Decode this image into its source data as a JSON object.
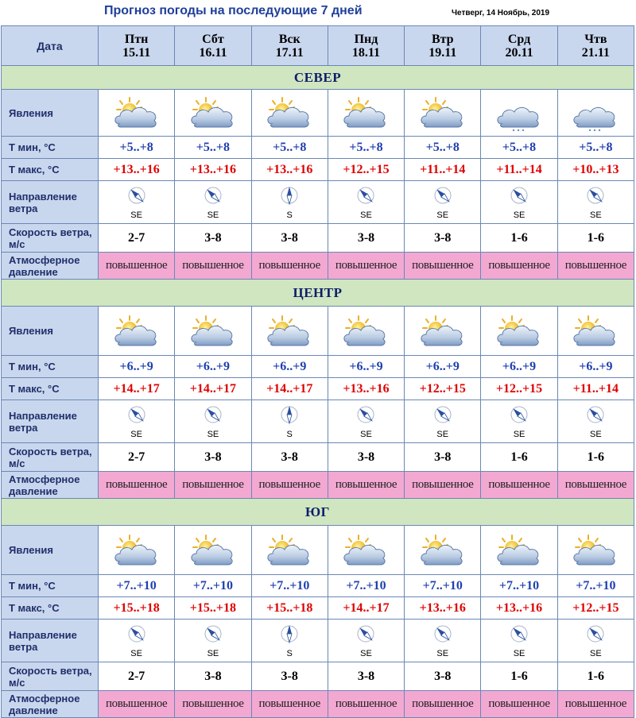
{
  "title": "Прогноз погоды на последующие 7 дней",
  "current_date": "Четверг, 14 Ноябрь, 2019",
  "header_label": "Дата",
  "days": [
    {
      "name": "Птн",
      "date": "15.11"
    },
    {
      "name": "Сбт",
      "date": "16.11"
    },
    {
      "name": "Вск",
      "date": "17.11"
    },
    {
      "name": "Пнд",
      "date": "18.11"
    },
    {
      "name": "Втр",
      "date": "19.11"
    },
    {
      "name": "Срд",
      "date": "20.11"
    },
    {
      "name": "Чтв",
      "date": "21.11"
    }
  ],
  "row_labels": {
    "phenomena": "Явления",
    "tmin": "Т мин, °С",
    "tmax": "Т макс, °С",
    "wind_dir": "Направление ветра",
    "wind_speed": "Скорость ветра, м/с",
    "pressure": "Атмосферное давление"
  },
  "colors": {
    "label_bg": "#c9d7ee",
    "region_bg": "#cfe6c0",
    "pressure_bg": "#f3a8d2",
    "tmin_text": "#1f3fb0",
    "tmax_text": "#e00000"
  },
  "regions": [
    {
      "name": "СЕВЕР",
      "icons": [
        "partly-cloudy-icon",
        "partly-cloudy-icon",
        "partly-cloudy-icon",
        "partly-cloudy-icon",
        "partly-cloudy-icon",
        "cloudy-light-snow-icon",
        "cloudy-light-snow-icon"
      ],
      "tmin": [
        "+5..+8",
        "+5..+8",
        "+5..+8",
        "+5..+8",
        "+5..+8",
        "+5..+8",
        "+5..+8"
      ],
      "tmax": [
        "+13..+16",
        "+13..+16",
        "+13..+16",
        "+12..+15",
        "+11..+14",
        "+11..+14",
        "+10..+13"
      ],
      "wind_dir": [
        "SE",
        "SE",
        "S",
        "SE",
        "SE",
        "SE",
        "SE"
      ],
      "wind_speed": [
        "2-7",
        "3-8",
        "3-8",
        "3-8",
        "3-8",
        "1-6",
        "1-6"
      ],
      "pressure": [
        "повышенное",
        "повышенное",
        "повышенное",
        "повышенное",
        "повышенное",
        "повышенное",
        "повышенное"
      ]
    },
    {
      "name": "ЦЕНТР",
      "icons": [
        "partly-cloudy-icon",
        "partly-cloudy-icon",
        "partly-cloudy-icon",
        "partly-cloudy-icon",
        "partly-cloudy-icon",
        "partly-cloudy-icon",
        "partly-cloudy-icon"
      ],
      "tmin": [
        "+6..+9",
        "+6..+9",
        "+6..+9",
        "+6..+9",
        "+6..+9",
        "+6..+9",
        "+6..+9"
      ],
      "tmax": [
        "+14..+17",
        "+14..+17",
        "+14..+17",
        "+13..+16",
        "+12..+15",
        "+12..+15",
        "+11..+14"
      ],
      "wind_dir": [
        "SE",
        "SE",
        "S",
        "SE",
        "SE",
        "SE",
        "SE"
      ],
      "wind_speed": [
        "2-7",
        "3-8",
        "3-8",
        "3-8",
        "3-8",
        "1-6",
        "1-6"
      ],
      "pressure": [
        "повышенное",
        "повышенное",
        "повышенное",
        "повышенное",
        "повышенное",
        "повышенное",
        "повышенное"
      ]
    },
    {
      "name": "ЮГ",
      "icons": [
        "partly-cloudy-icon",
        "partly-cloudy-icon",
        "partly-cloudy-icon",
        "partly-cloudy-icon",
        "partly-cloudy-icon",
        "partly-cloudy-icon",
        "partly-cloudy-icon"
      ],
      "tmin": [
        "+7..+10",
        "+7..+10",
        "+7..+10",
        "+7..+10",
        "+7..+10",
        "+7..+10",
        "+7..+10"
      ],
      "tmax": [
        "+15..+18",
        "+15..+18",
        "+15..+18",
        "+14..+17",
        "+13..+16",
        "+13..+16",
        "+12..+15"
      ],
      "wind_dir": [
        "SE",
        "SE",
        "S",
        "SE",
        "SE",
        "SE",
        "SE"
      ],
      "wind_speed": [
        "2-7",
        "3-8",
        "3-8",
        "3-8",
        "3-8",
        "1-6",
        "1-6"
      ],
      "pressure": [
        "повышенное",
        "повышенное",
        "повышенное",
        "повышенное",
        "повышенное",
        "повышенное",
        "повышенное"
      ]
    }
  ]
}
